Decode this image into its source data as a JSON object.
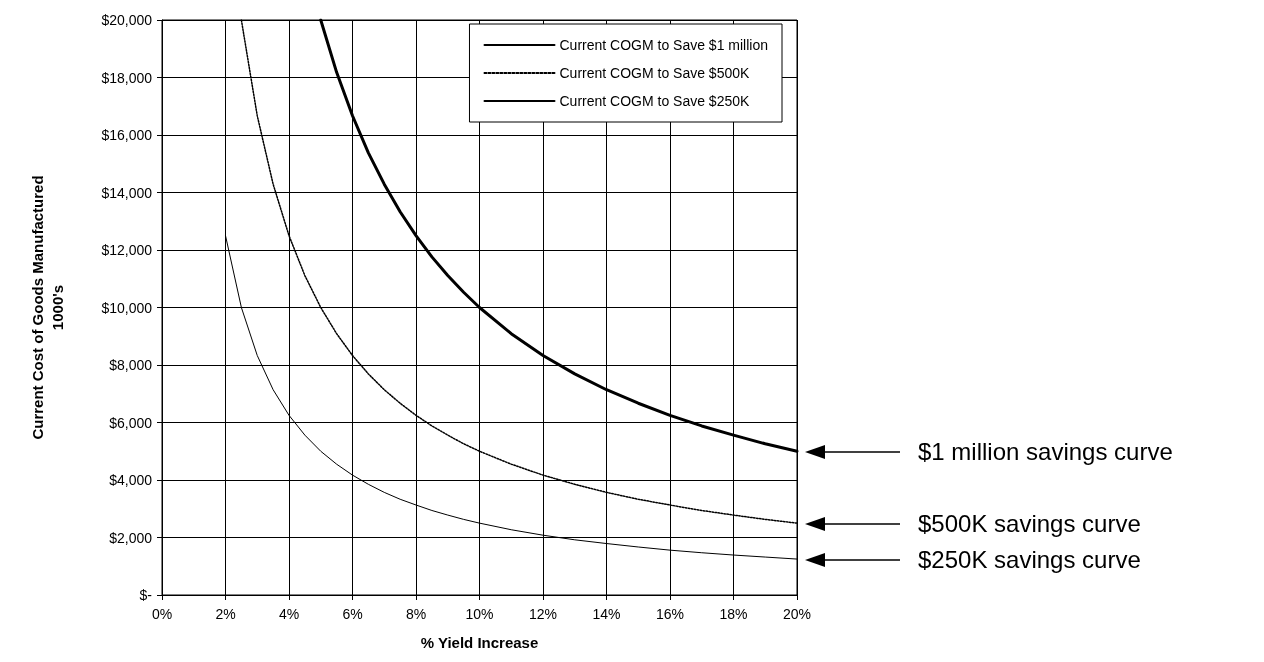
{
  "chart_data": {
    "type": "line",
    "xlabel": "% Yield Increase",
    "ylabel": "Current Cost of Goods Manufactured\n1000's",
    "xlim": [
      0,
      20
    ],
    "xticks": [
      {
        "value": 0,
        "label": "0%"
      },
      {
        "value": 2,
        "label": "2%"
      },
      {
        "value": 4,
        "label": "4%"
      },
      {
        "value": 6,
        "label": "6%"
      },
      {
        "value": 8,
        "label": "8%"
      },
      {
        "value": 10,
        "label": "10%"
      },
      {
        "value": 12,
        "label": "12%"
      },
      {
        "value": 14,
        "label": "14%"
      },
      {
        "value": 16,
        "label": "16%"
      },
      {
        "value": 18,
        "label": "18%"
      },
      {
        "value": 20,
        "label": "20%"
      }
    ],
    "ylim": [
      0,
      20000
    ],
    "yticks": [
      {
        "value": 0,
        "label": "$-"
      },
      {
        "value": 2000,
        "label": "$2,000"
      },
      {
        "value": 4000,
        "label": "$4,000"
      },
      {
        "value": 6000,
        "label": "$6,000"
      },
      {
        "value": 8000,
        "label": "$8,000"
      },
      {
        "value": 10000,
        "label": "$10,000"
      },
      {
        "value": 12000,
        "label": "$12,000"
      },
      {
        "value": 14000,
        "label": "$14,000"
      },
      {
        "value": 16000,
        "label": "$16,000"
      },
      {
        "value": 18000,
        "label": "$18,000"
      },
      {
        "value": 20000,
        "label": "$20,000"
      }
    ],
    "grid": true,
    "legend": "top right",
    "marker": "none",
    "series": [
      {
        "name": "Current COGM to Save $1 million",
        "color": "#000000",
        "line_style": "solid",
        "x": [
          5,
          5.5,
          6,
          6.5,
          7,
          7.5,
          8,
          8.5,
          9,
          9.5,
          10,
          11,
          12,
          13,
          14,
          15,
          16,
          17,
          18,
          19,
          20
        ],
        "values": [
          20000,
          18180,
          16670,
          15380,
          14290,
          13330,
          12500,
          11760,
          11110,
          10530,
          10000,
          9090,
          8330,
          7690,
          7140,
          6670,
          6250,
          5880,
          5560,
          5260,
          5000
        ]
      },
      {
        "name": "Current COGM to Save $500K",
        "color": "#000000",
        "line_style": "dotted",
        "x": [
          2.5,
          3,
          3.5,
          4,
          4.5,
          5,
          5.5,
          6,
          6.5,
          7,
          7.5,
          8,
          8.5,
          9,
          9.5,
          10,
          11,
          12,
          13,
          14,
          15,
          16,
          17,
          18,
          19,
          20
        ],
        "values": [
          20000,
          16670,
          14290,
          12500,
          11110,
          10000,
          9090,
          8330,
          7690,
          7140,
          6670,
          6250,
          5880,
          5560,
          5260,
          5000,
          4550,
          4170,
          3850,
          3570,
          3330,
          3130,
          2940,
          2780,
          2630,
          2500
        ]
      },
      {
        "name": "Current COGM to Save $250K",
        "color": "#000000",
        "line_style": "solid",
        "x": [
          2,
          2.5,
          3,
          3.5,
          4,
          4.5,
          5,
          5.5,
          6,
          6.5,
          7,
          7.5,
          8,
          8.5,
          9,
          9.5,
          10,
          11,
          12,
          13,
          14,
          15,
          16,
          17,
          18,
          19,
          20
        ],
        "values": [
          12500,
          10000,
          8330,
          7140,
          6250,
          5560,
          5000,
          4550,
          4170,
          3850,
          3570,
          3330,
          3130,
          2940,
          2780,
          2630,
          2500,
          2270,
          2080,
          1920,
          1790,
          1670,
          1560,
          1470,
          1390,
          1320,
          1250
        ]
      }
    ],
    "annotations": [
      "$1 million savings curve",
      "$500K savings curve",
      "$250K savings curve"
    ]
  }
}
